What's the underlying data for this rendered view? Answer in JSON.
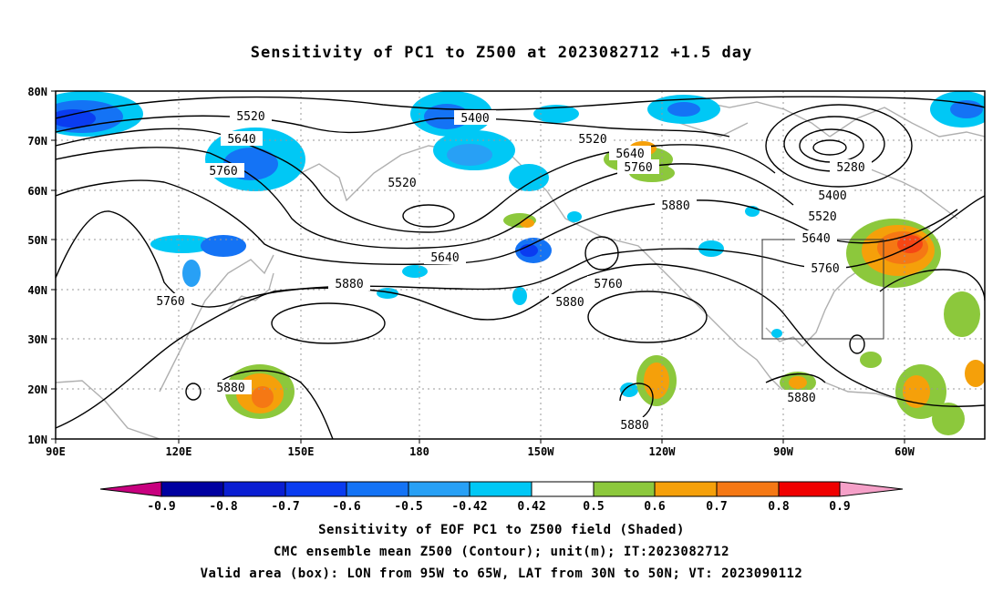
{
  "title": "Sensitivity of PC1 to Z500 at 2023082712 +1.5 day",
  "map": {
    "lat_labels": [
      "80N",
      "70N",
      "60N",
      "50N",
      "40N",
      "30N",
      "20N",
      "10N"
    ],
    "lon_labels": [
      "90E",
      "120E",
      "150E",
      "180",
      "150W",
      "120W",
      "90W",
      "60W"
    ],
    "valid_box": {
      "lon_from": "95W",
      "lon_to": "65W",
      "lat_from": "30N",
      "lat_to": "50N"
    },
    "contour_labels": [
      "5400",
      "5520",
      "5640",
      "5760",
      "5520",
      "5640",
      "5760",
      "5640",
      "5760",
      "5520",
      "5880",
      "5760",
      "5880",
      "5880",
      "5280",
      "5400",
      "5520",
      "5640",
      "5760",
      "5880",
      "5880",
      "5880"
    ]
  },
  "colorbar": {
    "labels": [
      "-0.9",
      "-0.8",
      "-0.7",
      "-0.6",
      "-0.5",
      "-0.42",
      "0.42",
      "0.5",
      "0.6",
      "0.7",
      "0.8",
      "0.9"
    ],
    "colors": [
      "#c8007f",
      "#0000a0",
      "#0a1ed2",
      "#0a3cf0",
      "#1473f5",
      "#28a0f5",
      "#00c8f5",
      "#ffffff",
      "#8cc83c",
      "#f5a00a",
      "#f57814",
      "#f54614",
      "#f00000",
      "#f5a0c8"
    ]
  },
  "captions": [
    "Sensitivity of EOF PC1 to Z500 field (Shaded)",
    "CMC ensemble mean Z500 (Contour); unit(m); IT:2023082712",
    "Valid area (box): LON from 95W to 65W, LAT from 30N to 50N; VT: 2023090112"
  ]
}
